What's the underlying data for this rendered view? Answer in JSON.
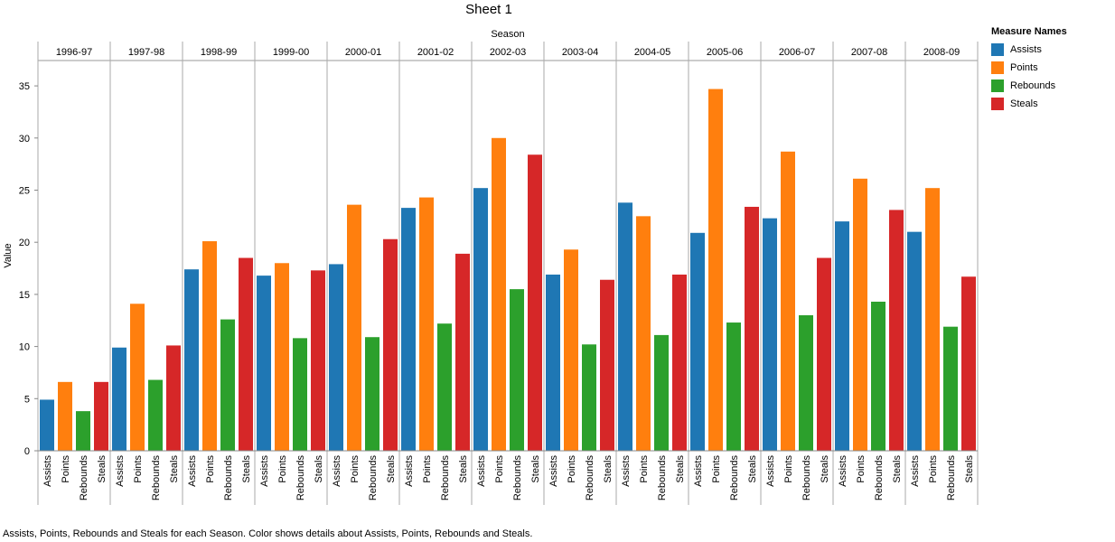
{
  "chart_data": {
    "type": "bar",
    "title": "Sheet 1",
    "column_header": "Season",
    "ylabel": "Value",
    "ylim": [
      0,
      37
    ],
    "yticks": [
      0,
      5,
      10,
      15,
      20,
      25,
      30,
      35
    ],
    "seasons": [
      "1996-97",
      "1997-98",
      "1998-99",
      "1999-00",
      "2000-01",
      "2001-02",
      "2002-03",
      "2003-04",
      "2004-05",
      "2005-06",
      "2006-07",
      "2007-08",
      "2008-09"
    ],
    "measures": [
      "Assists",
      "Points",
      "Rebounds",
      "Steals"
    ],
    "legend": {
      "title": "Measure Names",
      "position": "right"
    },
    "series": [
      {
        "name": "Assists",
        "color": "#1f77b4",
        "values": [
          4.9,
          9.9,
          17.4,
          16.8,
          17.9,
          23.3,
          25.2,
          16.9,
          23.8,
          20.9,
          22.3,
          22.0,
          21.0
        ]
      },
      {
        "name": "Points",
        "color": "#ff7f0e",
        "values": [
          6.6,
          14.1,
          20.1,
          18.0,
          23.6,
          24.3,
          30.0,
          19.3,
          22.5,
          34.7,
          28.7,
          26.1,
          25.2
        ]
      },
      {
        "name": "Rebounds",
        "color": "#2ca02c",
        "values": [
          3.8,
          6.8,
          12.6,
          10.8,
          10.9,
          12.2,
          15.5,
          10.2,
          11.1,
          12.3,
          13.0,
          14.3,
          11.9
        ]
      },
      {
        "name": "Steals",
        "color": "#d62728",
        "values": [
          6.6,
          10.1,
          18.5,
          17.3,
          20.3,
          18.9,
          28.4,
          16.4,
          16.9,
          23.4,
          18.5,
          23.1,
          16.7
        ]
      }
    ]
  },
  "caption": "Assists, Points, Rebounds and Steals for each Season.  Color shows details about Assists, Points, Rebounds and Steals."
}
